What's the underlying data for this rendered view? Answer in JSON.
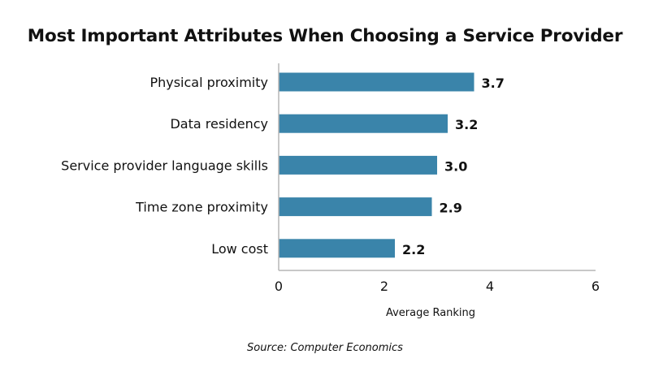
{
  "chart_data": {
    "type": "bar",
    "orientation": "horizontal",
    "title": "Most Important Attributes When Choosing a Service Provider",
    "categories": [
      "Physical proximity",
      "Data residency",
      "Service provider language skills",
      "Time zone proximity",
      "Low cost"
    ],
    "values": [
      3.7,
      3.2,
      3.0,
      2.9,
      2.2
    ],
    "value_labels": [
      "3.7",
      "3.2",
      "3.0",
      "2.9",
      "2.2"
    ],
    "xlabel": "Average Ranking",
    "ylabel": "",
    "xlim": [
      0,
      6
    ],
    "xticks": [
      "0",
      "2",
      "4",
      "6"
    ],
    "grid": false,
    "bar_color": "#3a84aa",
    "axis_color": "#b5b5b5",
    "source": "Source: Computer Economics"
  }
}
